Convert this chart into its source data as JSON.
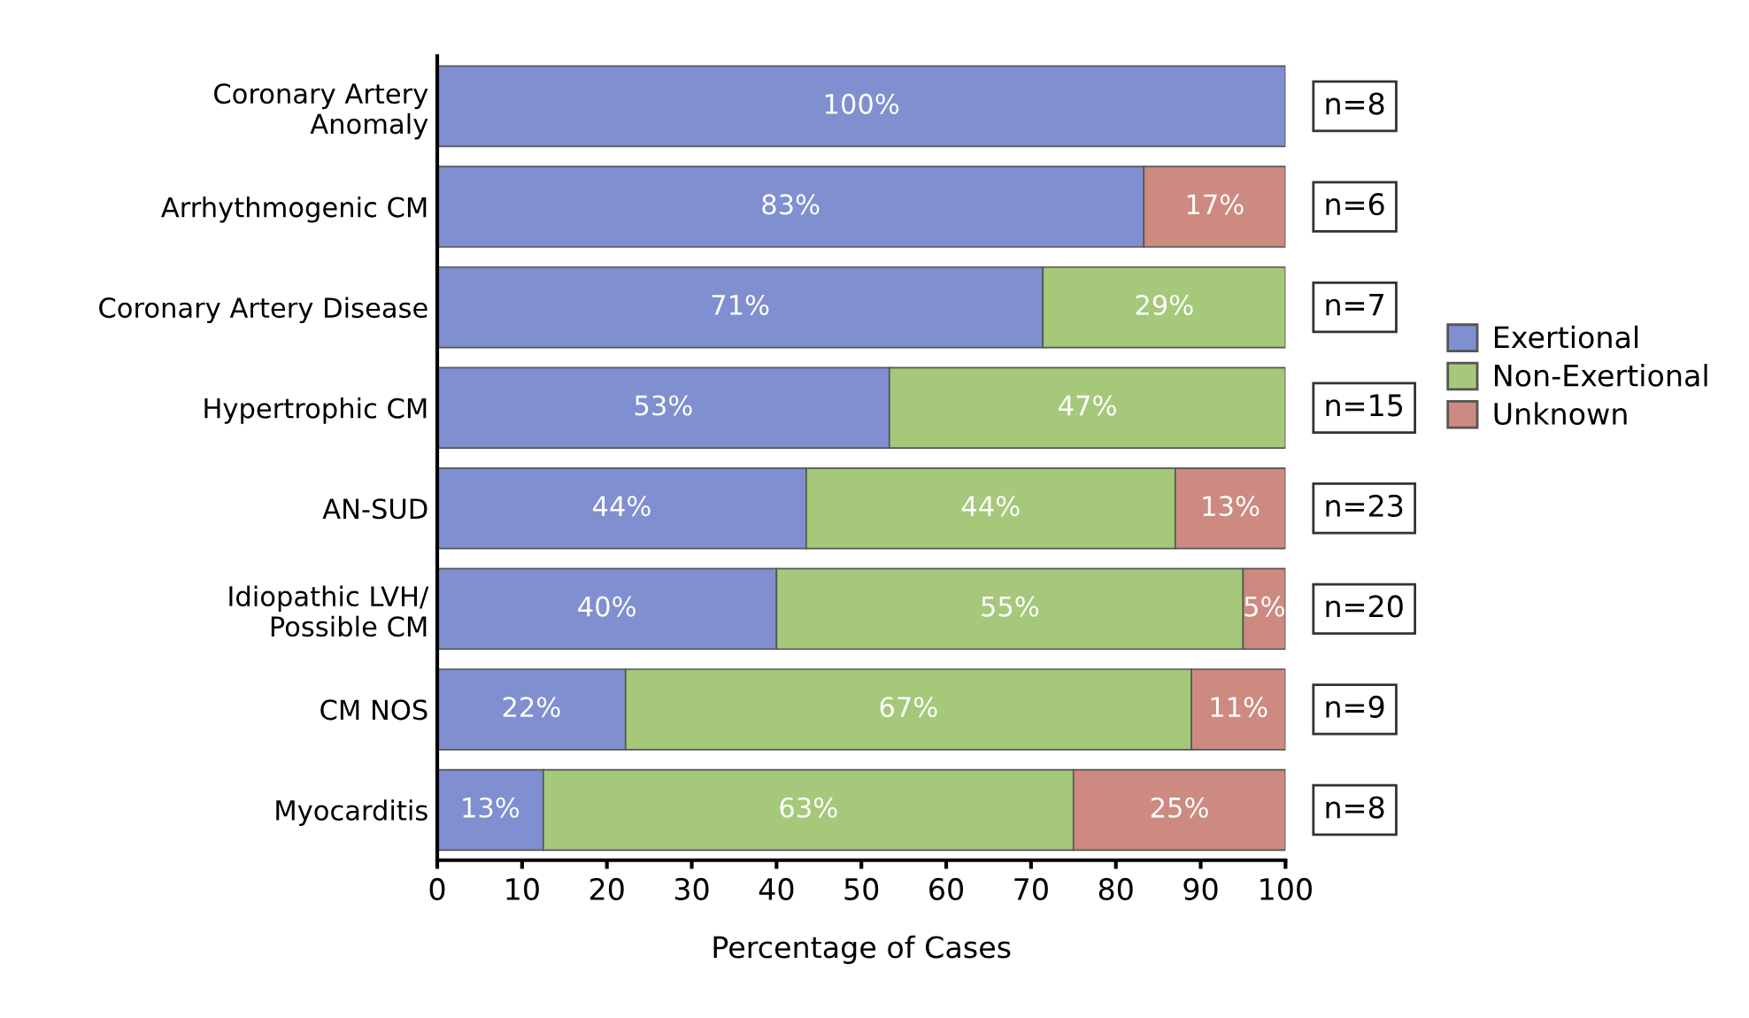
{
  "chart_data": {
    "type": "bar",
    "orientation": "horizontal",
    "stacked": true,
    "xlabel": "Percentage of Cases",
    "categories": [
      "Coronary Artery\nAnomaly",
      "Arrhythmogenic CM",
      "Coronary Artery Disease",
      "Hypertrophic CM",
      "AN-SUD",
      "Idiopathic LVH/\nPossible CM",
      "CM NOS",
      "Myocarditis"
    ],
    "series": [
      {
        "name": "Exertional",
        "color": "#7f8fd0",
        "values": [
          100,
          83.3,
          71.4,
          53.3,
          43.5,
          40,
          22.2,
          12.5
        ],
        "value_labels": [
          "100%",
          "83%",
          "71%",
          "53%",
          "44%",
          "40%",
          "22%",
          "13%"
        ]
      },
      {
        "name": "Non-Exertional",
        "color": "#a5c87a",
        "values": [
          null,
          null,
          28.6,
          46.7,
          43.5,
          55,
          66.7,
          62.5
        ],
        "value_labels": [
          null,
          null,
          "29%",
          "47%",
          "44%",
          "55%",
          "67%",
          "63%"
        ]
      },
      {
        "name": "Unknown",
        "color": "#cc8a80",
        "values": [
          null,
          16.7,
          null,
          null,
          13,
          5,
          11.1,
          25
        ],
        "value_labels": [
          null,
          "17%",
          null,
          null,
          "13%",
          "5%",
          "11%",
          "25%"
        ]
      }
    ],
    "xlim": [
      0,
      100
    ],
    "xticks": [
      0,
      10,
      20,
      30,
      40,
      50,
      60,
      70,
      80,
      90,
      100
    ],
    "legend": "right",
    "annotations": [
      "n=8",
      "n=6",
      "n=7",
      "n=15",
      "n=23",
      "n=20",
      "n=9",
      "n=8"
    ]
  }
}
